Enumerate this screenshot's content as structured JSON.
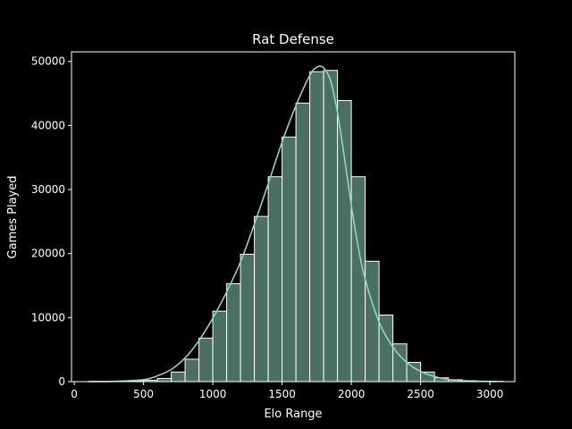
{
  "chart_data": {
    "type": "bar",
    "title": "Rat Defense",
    "xlabel": "Elo Range",
    "ylabel": "Games Played",
    "xlim": [
      -20,
      3180
    ],
    "ylim": [
      0,
      51500
    ],
    "xticks": [
      0,
      500,
      1000,
      1500,
      2000,
      2500,
      3000
    ],
    "yticks": [
      0,
      10000,
      20000,
      30000,
      40000,
      50000
    ],
    "bin_width": 100,
    "bins": [
      {
        "start": 100,
        "value": 20
      },
      {
        "start": 200,
        "value": 30
      },
      {
        "start": 300,
        "value": 60
      },
      {
        "start": 400,
        "value": 120
      },
      {
        "start": 500,
        "value": 200
      },
      {
        "start": 600,
        "value": 500
      },
      {
        "start": 700,
        "value": 1500
      },
      {
        "start": 800,
        "value": 3500
      },
      {
        "start": 900,
        "value": 6800
      },
      {
        "start": 1000,
        "value": 11000
      },
      {
        "start": 1100,
        "value": 15300
      },
      {
        "start": 1200,
        "value": 19900
      },
      {
        "start": 1300,
        "value": 25800
      },
      {
        "start": 1400,
        "value": 32000
      },
      {
        "start": 1500,
        "value": 38200
      },
      {
        "start": 1600,
        "value": 43500
      },
      {
        "start": 1700,
        "value": 48400
      },
      {
        "start": 1800,
        "value": 48600
      },
      {
        "start": 1900,
        "value": 43900
      },
      {
        "start": 2000,
        "value": 32000
      },
      {
        "start": 2100,
        "value": 18800
      },
      {
        "start": 2200,
        "value": 10400
      },
      {
        "start": 2300,
        "value": 5900
      },
      {
        "start": 2400,
        "value": 3000
      },
      {
        "start": 2500,
        "value": 1500
      },
      {
        "start": 2600,
        "value": 600
      },
      {
        "start": 2700,
        "value": 300
      },
      {
        "start": 2800,
        "value": 150
      },
      {
        "start": 2900,
        "value": 80
      },
      {
        "start": 3000,
        "value": 40
      }
    ],
    "kde": {
      "x": [
        100,
        300,
        500,
        600,
        700,
        800,
        900,
        1000,
        1100,
        1200,
        1300,
        1400,
        1500,
        1600,
        1700,
        1750,
        1800,
        1850,
        1900,
        1950,
        2000,
        2050,
        2100,
        2200,
        2300,
        2400,
        2500,
        2600,
        2700,
        2800,
        2900,
        3050
      ],
      "y": [
        0,
        50,
        300,
        900,
        1900,
        3700,
        6400,
        9900,
        14000,
        18700,
        24600,
        30900,
        37400,
        43100,
        47800,
        49100,
        49000,
        47000,
        42000,
        35000,
        27500,
        21000,
        16000,
        9300,
        5400,
        3000,
        1600,
        800,
        350,
        150,
        60,
        10
      ]
    },
    "grid": false,
    "colors": {
      "bar_fill": "#4b7063",
      "bar_edge": "#ffffff",
      "kde_line": "#8dd3c7",
      "axes": "#ffffff",
      "background": "#000000"
    }
  }
}
